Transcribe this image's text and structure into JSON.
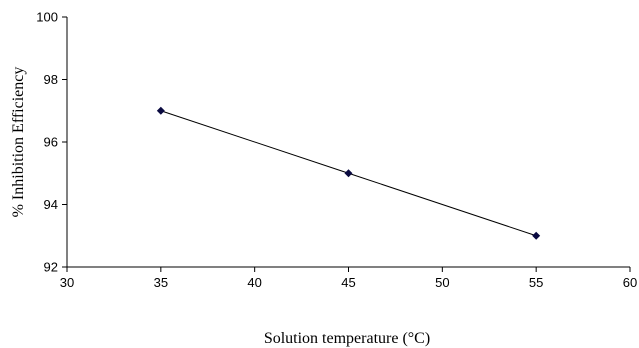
{
  "chart_data": {
    "type": "line",
    "title": "",
    "xlabel": "Solution temperature (°C)",
    "ylabel": "% Inhibition Efficiency",
    "xlim": [
      30,
      60
    ],
    "ylim": [
      92,
      100
    ],
    "xticks": [
      "30",
      "35",
      "40",
      "45",
      "50",
      "55",
      "60"
    ],
    "yticks": [
      "92",
      "94",
      "96",
      "98",
      "100"
    ],
    "grid": false,
    "legend": "none",
    "series": [
      {
        "x": [
          35,
          45,
          55
        ],
        "y": [
          97,
          95,
          93
        ],
        "color": "#000000",
        "marker": "diamond",
        "marker_color": "#0a0a40"
      }
    ]
  }
}
